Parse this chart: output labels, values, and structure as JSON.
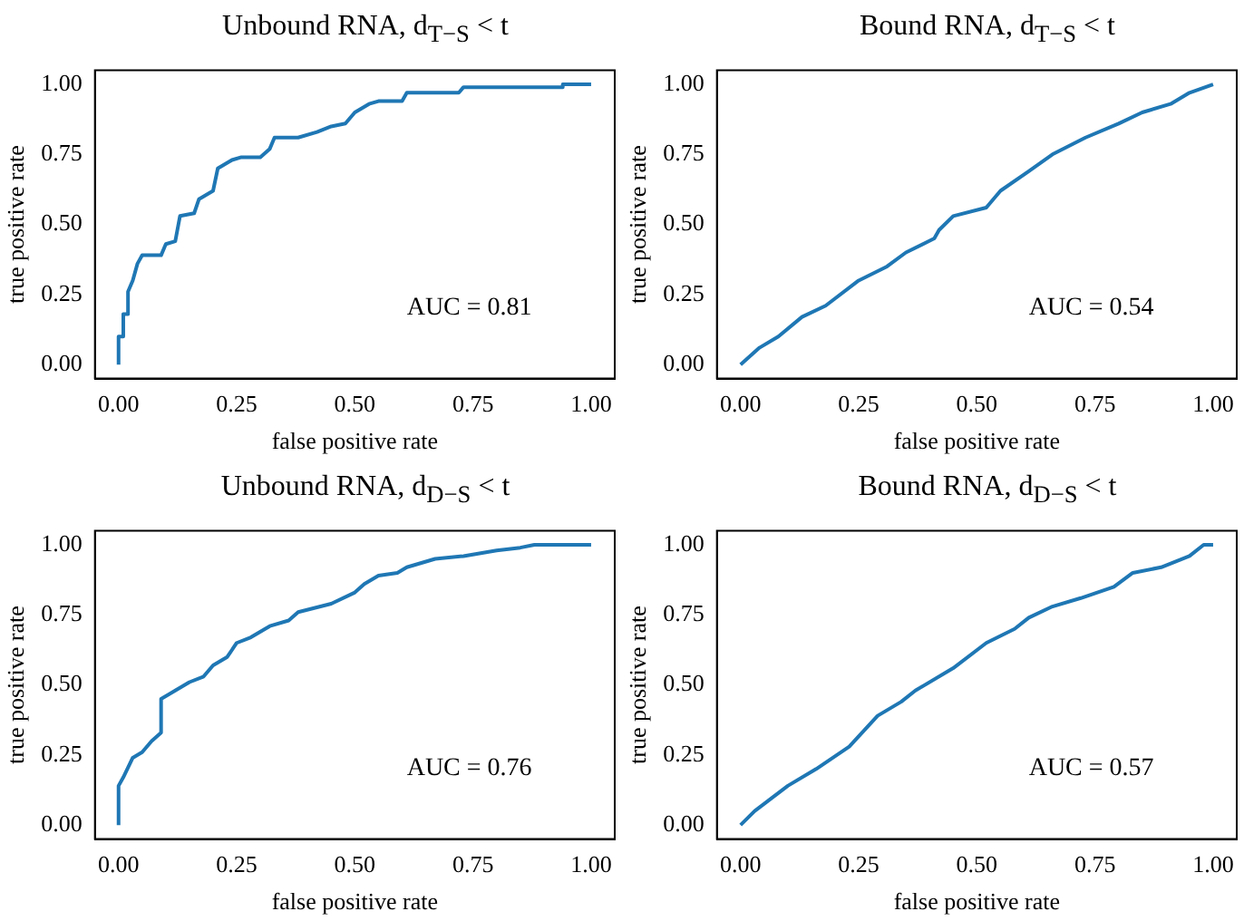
{
  "chart_data": [
    {
      "type": "line",
      "title": "Unbound RNA, d$_{T−S}$ < t",
      "xlabel": "false positive rate",
      "ylabel": "true positive rate",
      "xlim": [
        -0.05,
        1.05
      ],
      "ylim": [
        -0.05,
        1.05
      ],
      "xticks": [
        {
          "value": 0,
          "label": "0.00"
        },
        {
          "value": 0.25,
          "label": "0.25"
        },
        {
          "value": 0.5,
          "label": "0.50"
        },
        {
          "value": 0.75,
          "label": "0.75"
        },
        {
          "value": 1,
          "label": "1.00"
        }
      ],
      "yticks": [
        {
          "value": 0,
          "label": "0.00"
        },
        {
          "value": 0.25,
          "label": "0.25"
        },
        {
          "value": 0.5,
          "label": "0.50"
        },
        {
          "value": 0.75,
          "label": "0.75"
        },
        {
          "value": 1,
          "label": "1.00"
        }
      ],
      "marker": "none",
      "annotations": [
        "AUC = 0.81"
      ],
      "x": [
        0,
        0,
        0.01,
        0.01,
        0.02,
        0.02,
        0.03,
        0.04,
        0.05,
        0.09,
        0.1,
        0.12,
        0.13,
        0.16,
        0.17,
        0.2,
        0.21,
        0.24,
        0.26,
        0.3,
        0.32,
        0.33,
        0.38,
        0.42,
        0.45,
        0.48,
        0.5,
        0.53,
        0.55,
        0.6,
        0.61,
        0.72,
        0.73,
        0.94,
        0.94,
        1
      ],
      "series": [
        {
          "color": "#1f77b4",
          "values": [
            0,
            0.1,
            0.1,
            0.18,
            0.18,
            0.26,
            0.3,
            0.36,
            0.39,
            0.39,
            0.43,
            0.44,
            0.53,
            0.54,
            0.59,
            0.62,
            0.7,
            0.73,
            0.74,
            0.74,
            0.77,
            0.81,
            0.81,
            0.83,
            0.85,
            0.86,
            0.9,
            0.93,
            0.94,
            0.94,
            0.97,
            0.97,
            0.99,
            0.99,
            1,
            1
          ]
        }
      ]
    },
    {
      "type": "line",
      "title": "Bound RNA, d$_{T−S}$ < t",
      "xlabel": "false positive rate",
      "ylabel": "true positive rate",
      "xlim": [
        -0.05,
        1.05
      ],
      "ylim": [
        -0.05,
        1.05
      ],
      "xticks": [
        {
          "value": 0,
          "label": "0.00"
        },
        {
          "value": 0.25,
          "label": "0.25"
        },
        {
          "value": 0.5,
          "label": "0.50"
        },
        {
          "value": 0.75,
          "label": "0.75"
        },
        {
          "value": 1,
          "label": "1.00"
        }
      ],
      "yticks": [
        {
          "value": 0,
          "label": "0.00"
        },
        {
          "value": 0.25,
          "label": "0.25"
        },
        {
          "value": 0.5,
          "label": "0.50"
        },
        {
          "value": 0.75,
          "label": "0.75"
        },
        {
          "value": 1,
          "label": "1.00"
        }
      ],
      "marker": "none",
      "annotations": [
        "AUC = 0.54"
      ],
      "x": [
        0,
        0.04,
        0.08,
        0.13,
        0.18,
        0.25,
        0.31,
        0.35,
        0.41,
        0.42,
        0.45,
        0.52,
        0.55,
        0.61,
        0.66,
        0.73,
        0.8,
        0.85,
        0.91,
        0.95,
        1
      ],
      "series": [
        {
          "color": "#1f77b4",
          "values": [
            0,
            0.06,
            0.1,
            0.17,
            0.21,
            0.3,
            0.35,
            0.4,
            0.45,
            0.48,
            0.53,
            0.56,
            0.62,
            0.69,
            0.75,
            0.81,
            0.86,
            0.9,
            0.93,
            0.97,
            1
          ]
        }
      ]
    },
    {
      "type": "line",
      "title": "Unbound RNA, d$_{D−S}$ < t",
      "xlabel": "false positive rate",
      "ylabel": "true positive rate",
      "xlim": [
        -0.05,
        1.05
      ],
      "ylim": [
        -0.05,
        1.05
      ],
      "xticks": [
        {
          "value": 0,
          "label": "0.00"
        },
        {
          "value": 0.25,
          "label": "0.25"
        },
        {
          "value": 0.5,
          "label": "0.50"
        },
        {
          "value": 0.75,
          "label": "0.75"
        },
        {
          "value": 1,
          "label": "1.00"
        }
      ],
      "yticks": [
        {
          "value": 0,
          "label": "0.00"
        },
        {
          "value": 0.25,
          "label": "0.25"
        },
        {
          "value": 0.5,
          "label": "0.50"
        },
        {
          "value": 0.75,
          "label": "0.75"
        },
        {
          "value": 1,
          "label": "1.00"
        }
      ],
      "marker": "none",
      "annotations": [
        "AUC = 0.76"
      ],
      "x": [
        0,
        0,
        0.01,
        0.03,
        0.05,
        0.07,
        0.09,
        0.09,
        0.12,
        0.15,
        0.18,
        0.2,
        0.23,
        0.25,
        0.28,
        0.32,
        0.36,
        0.38,
        0.45,
        0.5,
        0.52,
        0.55,
        0.59,
        0.61,
        0.67,
        0.73,
        0.8,
        0.85,
        0.88,
        1
      ],
      "series": [
        {
          "color": "#1f77b4",
          "values": [
            0,
            0.14,
            0.17,
            0.24,
            0.26,
            0.3,
            0.33,
            0.45,
            0.48,
            0.51,
            0.53,
            0.57,
            0.6,
            0.65,
            0.67,
            0.71,
            0.73,
            0.76,
            0.79,
            0.83,
            0.86,
            0.89,
            0.9,
            0.92,
            0.95,
            0.96,
            0.98,
            0.99,
            1,
            1
          ]
        }
      ]
    },
    {
      "type": "line",
      "title": "Bound RNA, d$_{D−S}$ < t",
      "xlabel": "false positive rate",
      "ylabel": "true positive rate",
      "xlim": [
        -0.05,
        1.05
      ],
      "ylim": [
        -0.05,
        1.05
      ],
      "xticks": [
        {
          "value": 0,
          "label": "0.00"
        },
        {
          "value": 0.25,
          "label": "0.25"
        },
        {
          "value": 0.5,
          "label": "0.50"
        },
        {
          "value": 0.75,
          "label": "0.75"
        },
        {
          "value": 1,
          "label": "1.00"
        }
      ],
      "yticks": [
        {
          "value": 0,
          "label": "0.00"
        },
        {
          "value": 0.25,
          "label": "0.25"
        },
        {
          "value": 0.5,
          "label": "0.50"
        },
        {
          "value": 0.75,
          "label": "0.75"
        },
        {
          "value": 1,
          "label": "1.00"
        }
      ],
      "marker": "none",
      "annotations": [
        "AUC = 0.57"
      ],
      "x": [
        0,
        0.03,
        0.1,
        0.16,
        0.23,
        0.29,
        0.34,
        0.37,
        0.45,
        0.52,
        0.58,
        0.61,
        0.66,
        0.72,
        0.79,
        0.83,
        0.89,
        0.95,
        0.98,
        1
      ],
      "series": [
        {
          "color": "#1f77b4",
          "values": [
            0,
            0.05,
            0.14,
            0.2,
            0.28,
            0.39,
            0.44,
            0.48,
            0.56,
            0.65,
            0.7,
            0.74,
            0.78,
            0.81,
            0.85,
            0.9,
            0.92,
            0.96,
            1,
            1
          ]
        }
      ]
    }
  ]
}
